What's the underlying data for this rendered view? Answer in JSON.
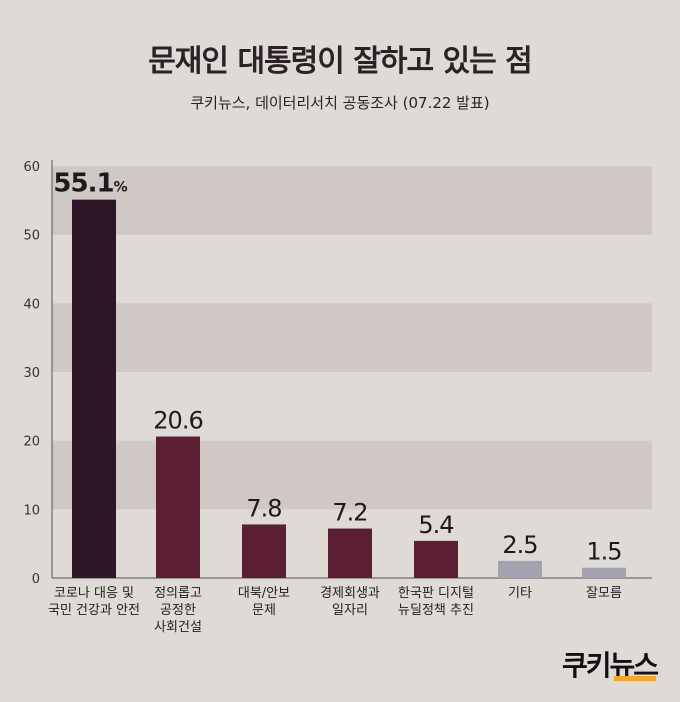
{
  "header": {
    "title": "문재인 대통령이 잘하고 있는 점",
    "subtitle": "쿠키뉴스, 데이터리서치 공동조사 (07.22 발표)"
  },
  "logo": {
    "text": "쿠키뉴스",
    "accent": "#f5a623"
  },
  "colors": {
    "background": "#dedad6",
    "band": "#cfc8c4",
    "bar_first": "#2e1629",
    "bar_main": "#5c1e33",
    "bar_minor": "#a4a2af"
  },
  "chart_data": {
    "type": "bar",
    "categories": [
      [
        "코로나 대응 및",
        "국민 건강과 안전"
      ],
      [
        "정의롭고",
        "공정한",
        "사회건설"
      ],
      [
        "대북/안보",
        "문제"
      ],
      [
        "경제회생과",
        "일자리"
      ],
      [
        "한국판 디지털",
        "뉴딜정책 추진"
      ],
      [
        "기타"
      ],
      [
        "잘모름"
      ]
    ],
    "values": [
      55.1,
      20.6,
      7.8,
      7.2,
      5.4,
      2.5,
      1.5
    ],
    "value_labels": [
      "55.1",
      "20.6",
      "7.8",
      "7.2",
      "5.4",
      "2.5",
      "1.5"
    ],
    "unit_suffix": "%",
    "yticks": [
      0,
      10,
      20,
      30,
      40,
      50,
      60
    ],
    "ylim": [
      0,
      60
    ],
    "grid": "alternating horizontal bands",
    "legend": "none"
  }
}
